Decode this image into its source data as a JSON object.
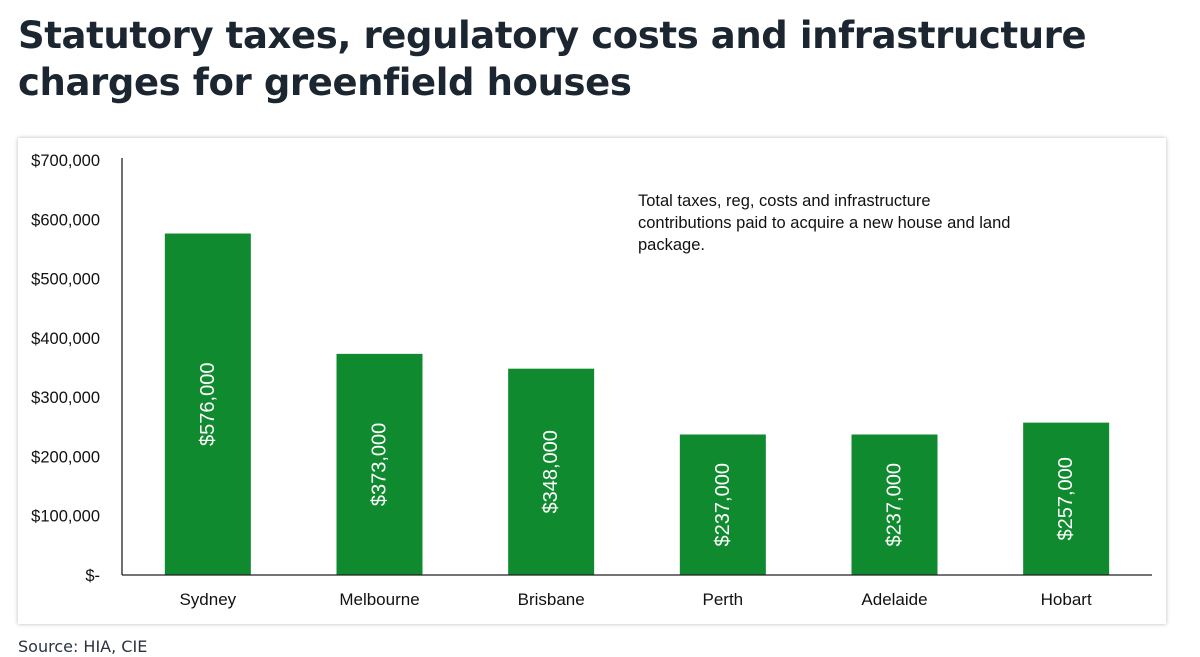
{
  "title": "Statutory taxes, regulatory costs and infrastructure charges for greenfield houses",
  "source": "Source: HIA, CIE",
  "colors": {
    "bar": "#0f8a2e",
    "axis": "#222222",
    "bar_label": "#ffffff"
  },
  "chart_data": {
    "type": "bar",
    "title": "Statutory taxes, regulatory costs and infrastructure charges for greenfield houses",
    "xlabel": "",
    "ylabel": "",
    "categories": [
      "Sydney",
      "Melbourne",
      "Brisbane",
      "Perth",
      "Adelaide",
      "Hobart"
    ],
    "values": [
      576000,
      373000,
      348000,
      237000,
      237000,
      257000
    ],
    "value_labels": [
      "$576,000",
      "$373,000",
      "$348,000",
      "$237,000",
      "$237,000",
      "$257,000"
    ],
    "ylim": [
      0,
      700000
    ],
    "yticks": [
      0,
      100000,
      200000,
      300000,
      400000,
      500000,
      600000,
      700000
    ],
    "ytick_labels": [
      "$-",
      "$100,000",
      "$200,000",
      "$300,000",
      "$400,000",
      "$500,000",
      "$600,000",
      "$700,000"
    ],
    "grid": false,
    "annotation": "Total taxes, reg, costs and infrastructure contributions paid to acquire a new house and land package."
  }
}
